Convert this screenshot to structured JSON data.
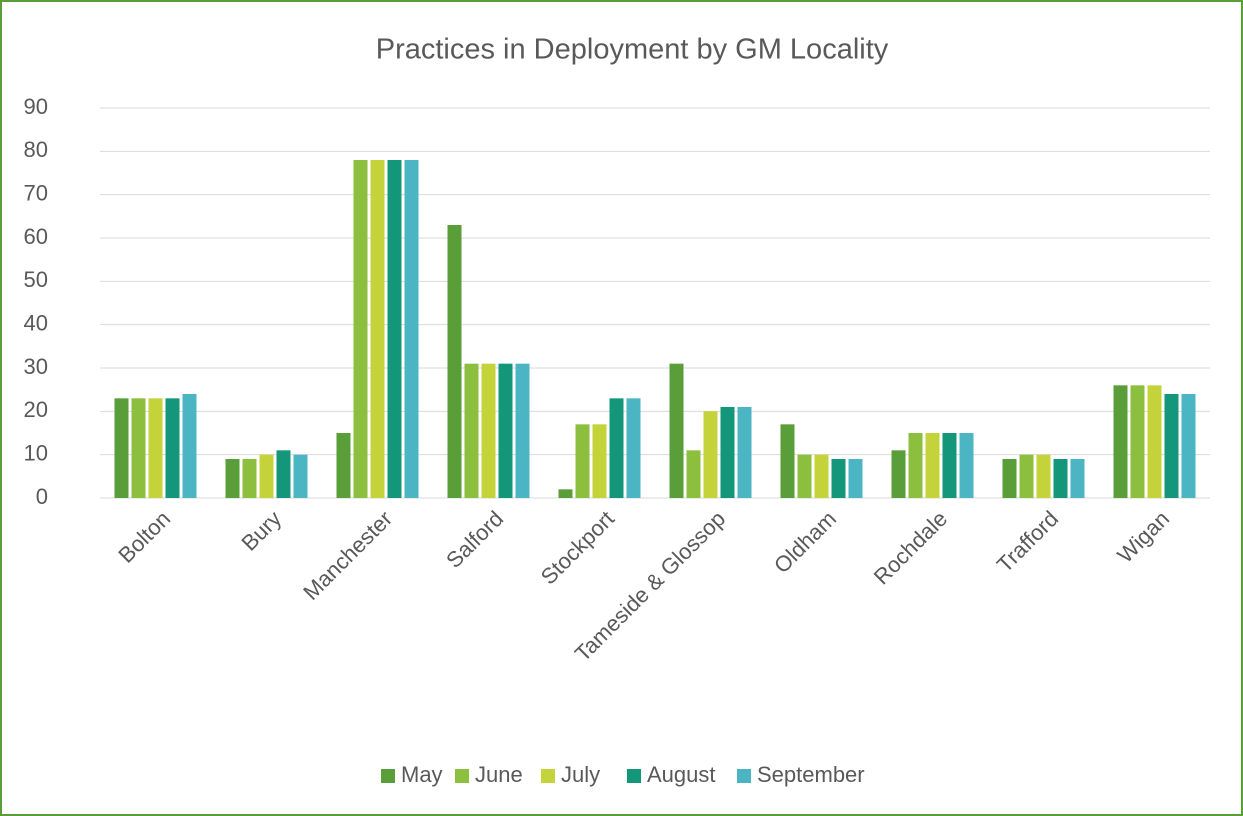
{
  "chart_data": {
    "type": "bar",
    "title": "Practices in Deployment by GM Locality",
    "categories": [
      "Bolton",
      "Bury",
      "Manchester",
      "Salford",
      "Stockport",
      "Tameside & Glossop",
      "Oldham",
      "Rochdale",
      "Trafford",
      "Wigan"
    ],
    "series": [
      {
        "name": "May",
        "color": "#5a9e3a",
        "values": [
          23,
          9,
          15,
          63,
          2,
          31,
          17,
          11,
          9,
          26
        ]
      },
      {
        "name": "June",
        "color": "#8dbf3f",
        "values": [
          23,
          9,
          78,
          31,
          17,
          11,
          10,
          15,
          10,
          26
        ]
      },
      {
        "name": "July",
        "color": "#c4d33a",
        "values": [
          23,
          10,
          78,
          31,
          17,
          20,
          10,
          15,
          10,
          26
        ]
      },
      {
        "name": "August",
        "color": "#14967a",
        "values": [
          23,
          11,
          78,
          31,
          23,
          21,
          9,
          15,
          9,
          24
        ]
      },
      {
        "name": "September",
        "color": "#4bb5c4",
        "values": [
          24,
          10,
          78,
          31,
          23,
          21,
          9,
          15,
          9,
          24
        ]
      }
    ],
    "ylim": [
      0,
      90
    ],
    "yticks": [
      0,
      10,
      20,
      30,
      40,
      50,
      60,
      70,
      80,
      90
    ],
    "grid": true,
    "legend": "bottom"
  }
}
